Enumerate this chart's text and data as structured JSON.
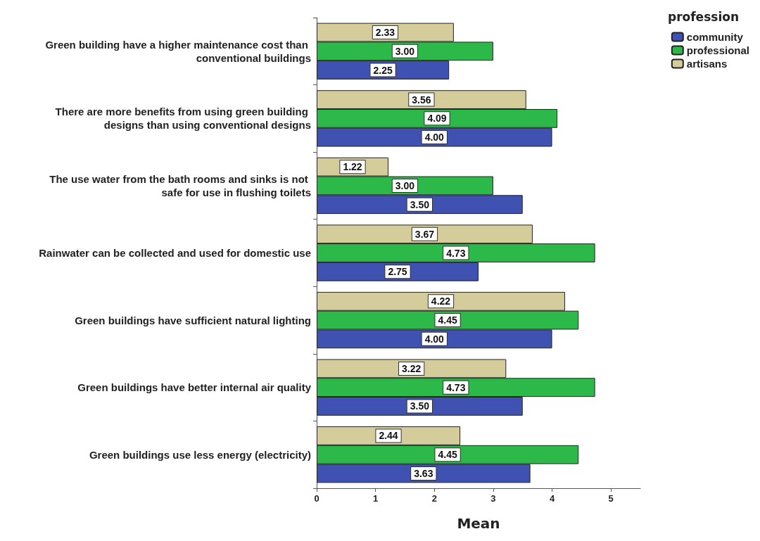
{
  "chart_data": {
    "type": "bar",
    "orientation": "horizontal",
    "xlabel": "Mean",
    "legend_title": "profession",
    "legend": "top right",
    "grid": false,
    "categories": [
      "Green building have a higher maintenance cost than conventional buildings",
      "There are more benefits from using green building designs than using conventional designs",
      "The use water from the bath rooms and sinks is not safe for use in flushing toilets",
      "Rainwater can be collected and used for domestic use",
      "Green buildings have sufficient natural lighting",
      "Green buildings have better internal air quality",
      "Green buildings use less energy (electricity)"
    ],
    "series": [
      {
        "name": "community",
        "color": "#3f51b1",
        "values": [
          2.25,
          4.0,
          3.5,
          2.75,
          4.0,
          3.5,
          3.63
        ],
        "value_labels": [
          "2.25",
          "4.00",
          "3.50",
          "2.75",
          "4.00",
          "3.50",
          "3.63"
        ]
      },
      {
        "name": "professional",
        "color": "#2db84a",
        "values": [
          3.0,
          4.09,
          3.0,
          4.73,
          4.45,
          4.73,
          4.45
        ],
        "value_labels": [
          "3.00",
          "4.09",
          "3.00",
          "4.73",
          "4.45",
          "4.73",
          "4.45"
        ]
      },
      {
        "name": "artisans",
        "color": "#d4cc9a",
        "values": [
          2.33,
          3.56,
          1.22,
          3.67,
          4.22,
          3.22,
          2.44
        ],
        "value_labels": [
          "2.33",
          "3.56",
          "1.22",
          "3.67",
          "4.22",
          "3.22",
          "2.44"
        ]
      }
    ],
    "xlim": [
      0,
      5.5
    ],
    "xticks": [
      0,
      1,
      2,
      3,
      4,
      5
    ]
  }
}
